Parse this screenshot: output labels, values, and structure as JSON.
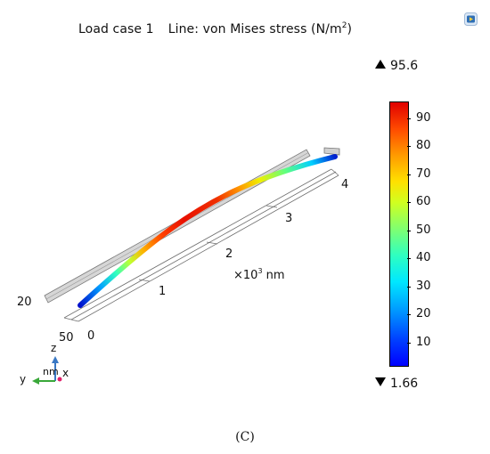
{
  "title": {
    "load_case": "Load case 1",
    "plot_prefix": "Line: von Mises stress (N/m",
    "plot_exp": "2",
    "plot_suffix": ")"
  },
  "icons": {
    "scene": "camera-scene-icon"
  },
  "scene": {
    "x_ticks": [
      "0",
      "1",
      "2",
      "3",
      "4"
    ],
    "x_unit_prefix": "×10",
    "x_unit_exp": "3",
    "x_unit_suffix": " nm",
    "y_ticks": [
      "20",
      "50"
    ],
    "beam_colors": [
      "#0000cc",
      "#00c8ff",
      "#60ff80",
      "#ffe000",
      "#ff6000",
      "#e81000"
    ]
  },
  "colorbar": {
    "max_label": "95.6",
    "min_label": "1.66",
    "ticks": [
      "10",
      "20",
      "30",
      "40",
      "50",
      "60",
      "70",
      "80",
      "90"
    ],
    "min_value": 1.66,
    "max_value": 95.6
  },
  "axes_triad": {
    "z": "z",
    "y": "y",
    "x": "x",
    "unit": "nm"
  },
  "caption": "(C)"
}
